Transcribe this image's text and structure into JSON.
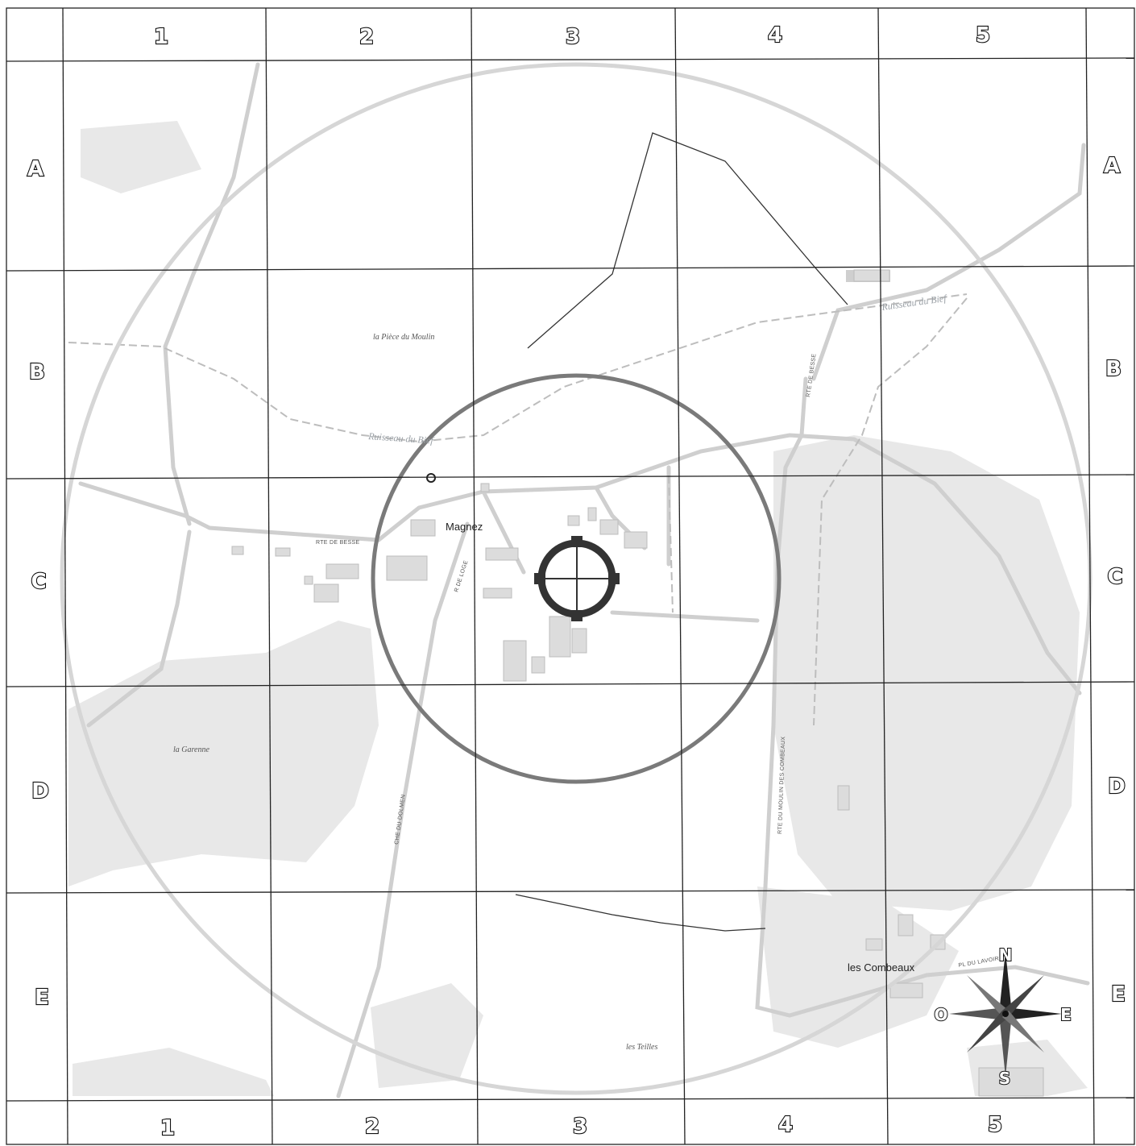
{
  "grid": {
    "columns": [
      "1",
      "2",
      "3",
      "4",
      "5"
    ],
    "rows": [
      "A",
      "B",
      "C",
      "D",
      "E"
    ]
  },
  "places": {
    "magnez": "Magnez",
    "piece_du_moulin": "la Pièce du Moulin",
    "garenne": "la Garenne",
    "combeaux": "les Combeaux",
    "teilles": "les Teilles"
  },
  "waterways": {
    "bief_west": "Ruisseau du Bief",
    "bief_east": "Ruisseau du Bief"
  },
  "roads": {
    "rte_de_besse_west": "RTE DE BESSE",
    "rte_de_besse_north": "RTE DE BESSE",
    "r_de_loge": "R DE LOGE",
    "che_du_dolmen": "CHE DU DOLMEN",
    "rte_moulin_combeaux": "RTE DU MOULIN DES COMBEAUX",
    "pl_du_lavoir": "PL DU LAVOIR"
  },
  "compass": {
    "n": "N",
    "s": "S",
    "e": "E",
    "w": "O"
  },
  "colors": {
    "grid": "#222222",
    "outer_circle": "#d6d6d6",
    "inner_circle": "#7a7a7a",
    "target": "#333333",
    "forest": "#e6e6e6",
    "road": "#cfcfcf"
  }
}
